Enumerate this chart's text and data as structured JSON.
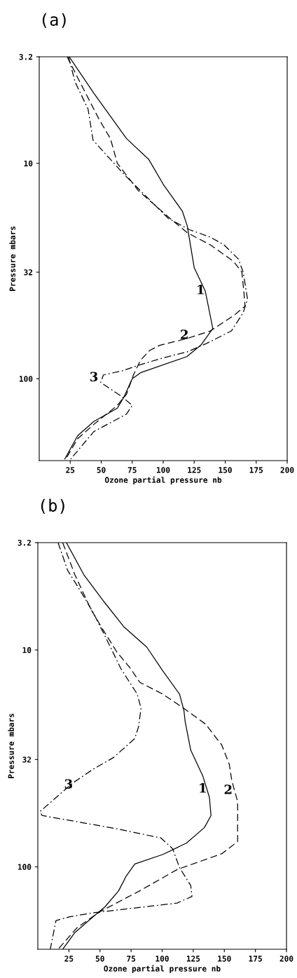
{
  "chart_data": [
    {
      "type": "line",
      "title": "(a)",
      "xlabel": "Ozone partial pressure nb",
      "ylabel": "Pressure mbars",
      "log": "y",
      "grid": false,
      "xlim": [
        0,
        200
      ],
      "xticks": [
        25,
        50,
        75,
        100,
        125,
        150,
        175,
        200
      ],
      "ylim": [
        240,
        3.2
      ],
      "yticks": [
        3.2,
        10,
        32,
        100
      ],
      "series": [
        {
          "color": "#000000",
          "line_style": "solid",
          "x": [
            24.2,
            44,
            70.4,
            88.4,
            100,
            115.5,
            119.4,
            121,
            125,
            134,
            140,
            130.5,
            119,
            81.7,
            75,
            68.5,
            63,
            44,
            31,
            20.6
          ],
          "values": [
            3.2,
            4.72,
            7.67,
            9.6,
            12.5,
            16.7,
            19.5,
            22.2,
            30.5,
            39.3,
            58.5,
            69.7,
            79,
            93.8,
            100,
            121,
            137,
            158,
            184,
            236
          ]
        },
        {
          "color": "#000000",
          "line_style": "dashed",
          "x": [
            22.5,
            31,
            48,
            57.5,
            63,
            80,
            104,
            119.4,
            138,
            156.7,
            163.4,
            165,
            166,
            156.7,
            138,
            119.4,
            97,
            89,
            81.7,
            76,
            70.4,
            63,
            44,
            31,
            21.4
          ],
          "values": [
            3.2,
            4.0,
            6.2,
            7.7,
            10,
            13.4,
            17.7,
            21,
            23.9,
            28.5,
            32,
            39,
            46,
            51,
            60,
            65,
            70,
            74,
            82,
            96,
            118,
            133,
            163,
            190,
            236
          ]
        },
        {
          "color": "#000000",
          "line_style": "dashdot",
          "x": [
            23.6,
            29,
            39.4,
            43.4,
            53.5,
            68.7,
            81.7,
            104,
            121,
            138,
            149,
            160.6,
            164.5,
            168,
            164.5,
            155,
            134,
            119.4,
            100,
            81.7,
            66.6,
            51.8,
            49.6,
            66.6,
            75,
            70.4,
            44,
            25.4
          ],
          "values": [
            3.2,
            4.2,
            5.6,
            7.8,
            9.05,
            11.3,
            13.4,
            18,
            20.3,
            22,
            23.9,
            27.8,
            32,
            42.6,
            49.4,
            60,
            69,
            75,
            80,
            86,
            92,
            96,
            104,
            121,
            133,
            146,
            176,
            236
          ]
        }
      ],
      "annotations": [
        {
          "text": "1",
          "x": 134,
          "y": 39
        },
        {
          "text": "2",
          "x": 121,
          "y": 63
        },
        {
          "text": "3",
          "x": 48,
          "y": 99
        }
      ]
    },
    {
      "type": "line",
      "title": "(b)",
      "xlabel": "Ozone partial pressure nb",
      "ylabel": "Pressure mbars",
      "log": "y",
      "grid": false,
      "xlim": [
        0,
        200
      ],
      "xticks": [
        25,
        50,
        75,
        100,
        125,
        150,
        175,
        200
      ],
      "ylim": [
        240,
        3.2
      ],
      "yticks": [
        3.2,
        10,
        32,
        100
      ],
      "series": [
        {
          "color": "#000000",
          "line_style": "solid",
          "x": [
            23,
            37,
            54,
            69,
            87.6,
            100.6,
            114,
            117.5,
            118.5,
            123,
            132.6,
            138,
            139.3,
            134,
            119.6,
            100.6,
            78,
            70.8,
            65,
            54,
            44.4,
            29.8,
            20
          ],
          "values": [
            3.2,
            4.5,
            6.07,
            7.8,
            9.7,
            12.5,
            16,
            19,
            21.4,
            29,
            38,
            47.8,
            58,
            65.9,
            77.7,
            87.7,
            97,
            111,
            129,
            153,
            170,
            201,
            240
          ]
        },
        {
          "color": "#000000",
          "line_style": "dashed",
          "x": [
            20,
            29.8,
            42.7,
            52,
            63.5,
            74.7,
            82,
            100.6,
            117.5,
            135,
            148,
            154,
            156,
            160.7,
            160.7,
            148,
            112,
            82,
            50,
            31.5,
            16.3
          ],
          "values": [
            3.2,
            4.5,
            6.5,
            8,
            10.2,
            12.2,
            14.1,
            16,
            18.6,
            22,
            27.5,
            33.7,
            40,
            50,
            76.5,
            87,
            103,
            129,
            161,
            191,
            240
          ]
        },
        {
          "color": "#000000",
          "line_style": "dashdot",
          "x": [
            16.3,
            24,
            33,
            44.4,
            55.6,
            66.8,
            80,
            83,
            81,
            78,
            61,
            44.4,
            27.5,
            1.7,
            3.4,
            63.5,
            99,
            108.5,
            114,
            123,
            124,
            112,
            44.4,
            25.8,
            14.6,
            10
          ],
          "values": [
            3.2,
            4.3,
            5.2,
            6.7,
            9,
            12.2,
            16,
            18.6,
            22.6,
            25.6,
            31.3,
            35.5,
            41.3,
            55.7,
            58,
            66.8,
            73.6,
            82.6,
            101,
            122,
            137,
            147,
            163,
            170,
            177,
            240
          ]
        }
      ],
      "annotations": [
        {
          "text": "1",
          "x": 136.5,
          "y": 43.8
        },
        {
          "text": "2",
          "x": 157,
          "y": 44.5
        },
        {
          "text": "3",
          "x": 28.6,
          "y": 42
        }
      ]
    }
  ]
}
